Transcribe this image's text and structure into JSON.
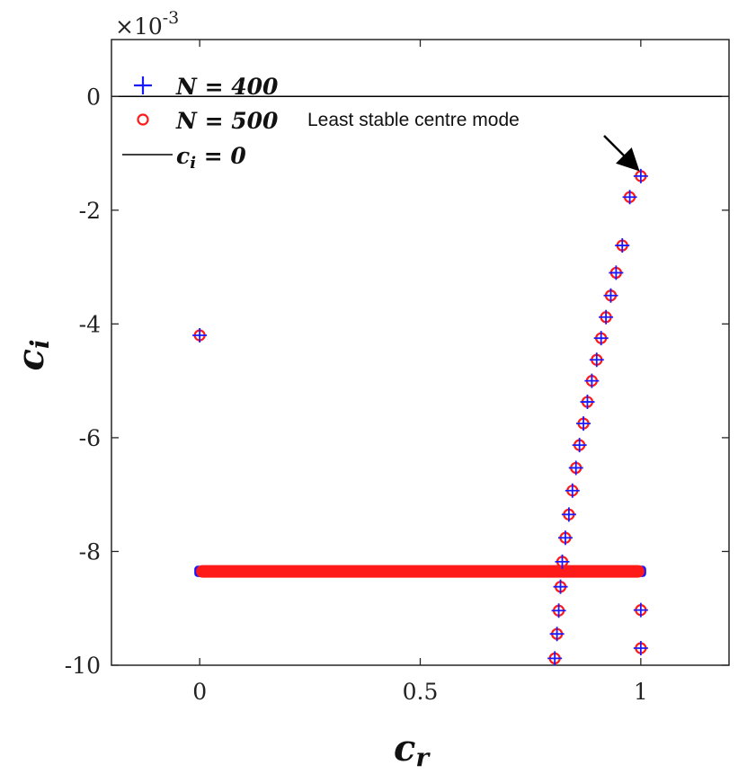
{
  "chart_data": {
    "type": "scatter",
    "xlabel": "c_r",
    "ylabel": "c_i",
    "xlim": [
      -0.2,
      1.2
    ],
    "ylim": [
      -10,
      1
    ],
    "y_scale_exponent": "×10-3",
    "x_ticks": [
      "0",
      "0.5",
      "1"
    ],
    "x_tick_values": [
      0,
      0.5,
      1
    ],
    "y_ticks": [
      "0",
      "-2",
      "-4",
      "-6",
      "-8",
      "-10"
    ],
    "y_tick_values": [
      0,
      -2,
      -4,
      -6,
      -8,
      -10
    ],
    "reference_line": {
      "name": "c_i = 0",
      "y": 0,
      "color": "#000000"
    },
    "continuous_band": {
      "x_range": [
        0,
        1
      ],
      "y": -8.35,
      "y_spread": [
        -8.45,
        -8.25
      ]
    },
    "series": [
      {
        "name": "N = 400",
        "marker": "+",
        "color": "#1a1aff",
        "points": [
          [
            1.0,
            -1.4
          ],
          [
            0.975,
            -1.77
          ],
          [
            0.958,
            -2.62
          ],
          [
            0.944,
            -3.1
          ],
          [
            0.932,
            -3.5
          ],
          [
            0.921,
            -3.88
          ],
          [
            0.91,
            -4.25
          ],
          [
            0.9,
            -4.63
          ],
          [
            0.889,
            -5.0
          ],
          [
            0.879,
            -5.37
          ],
          [
            0.87,
            -5.75
          ],
          [
            0.861,
            -6.13
          ],
          [
            0.853,
            -6.53
          ],
          [
            0.845,
            -6.93
          ],
          [
            0.837,
            -7.35
          ],
          [
            0.829,
            -7.76
          ],
          [
            0.822,
            -8.18
          ],
          [
            0.818,
            -8.62
          ],
          [
            0.814,
            -9.04
          ],
          [
            0.81,
            -9.45
          ],
          [
            0.805,
            -9.88
          ],
          [
            1.0,
            -9.03
          ],
          [
            1.0,
            -9.7
          ],
          [
            0.0,
            -4.2
          ]
        ]
      },
      {
        "name": "N = 500",
        "marker": "o",
        "color": "#ff1a1a",
        "points": [
          [
            1.0,
            -1.4
          ],
          [
            0.975,
            -1.77
          ],
          [
            0.958,
            -2.62
          ],
          [
            0.944,
            -3.1
          ],
          [
            0.932,
            -3.5
          ],
          [
            0.921,
            -3.88
          ],
          [
            0.91,
            -4.25
          ],
          [
            0.9,
            -4.63
          ],
          [
            0.889,
            -5.0
          ],
          [
            0.879,
            -5.37
          ],
          [
            0.87,
            -5.75
          ],
          [
            0.861,
            -6.13
          ],
          [
            0.853,
            -6.53
          ],
          [
            0.845,
            -6.93
          ],
          [
            0.837,
            -7.35
          ],
          [
            0.829,
            -7.76
          ],
          [
            0.822,
            -8.18
          ],
          [
            0.818,
            -8.62
          ],
          [
            0.814,
            -9.04
          ],
          [
            0.81,
            -9.45
          ],
          [
            0.805,
            -9.88
          ],
          [
            1.0,
            -9.03
          ],
          [
            1.0,
            -9.7
          ],
          [
            0.0,
            -4.2
          ]
        ]
      }
    ],
    "legend": {
      "placement": "top-left",
      "entries": [
        {
          "label_var": "N",
          "label_eq": " = 400",
          "marker": "+",
          "color": "#1a1aff"
        },
        {
          "label_var": "N",
          "label_eq": " = 500",
          "marker": "o",
          "color": "#ff1a1a"
        },
        {
          "label_var": "c",
          "label_sub": "i",
          "label_eq": " = 0",
          "marker": "line",
          "color": "#000000"
        }
      ]
    },
    "annotations": [
      {
        "text": "Least stable centre mode",
        "arrow_to": [
          1.0,
          -1.4
        ]
      }
    ],
    "grid": false
  }
}
